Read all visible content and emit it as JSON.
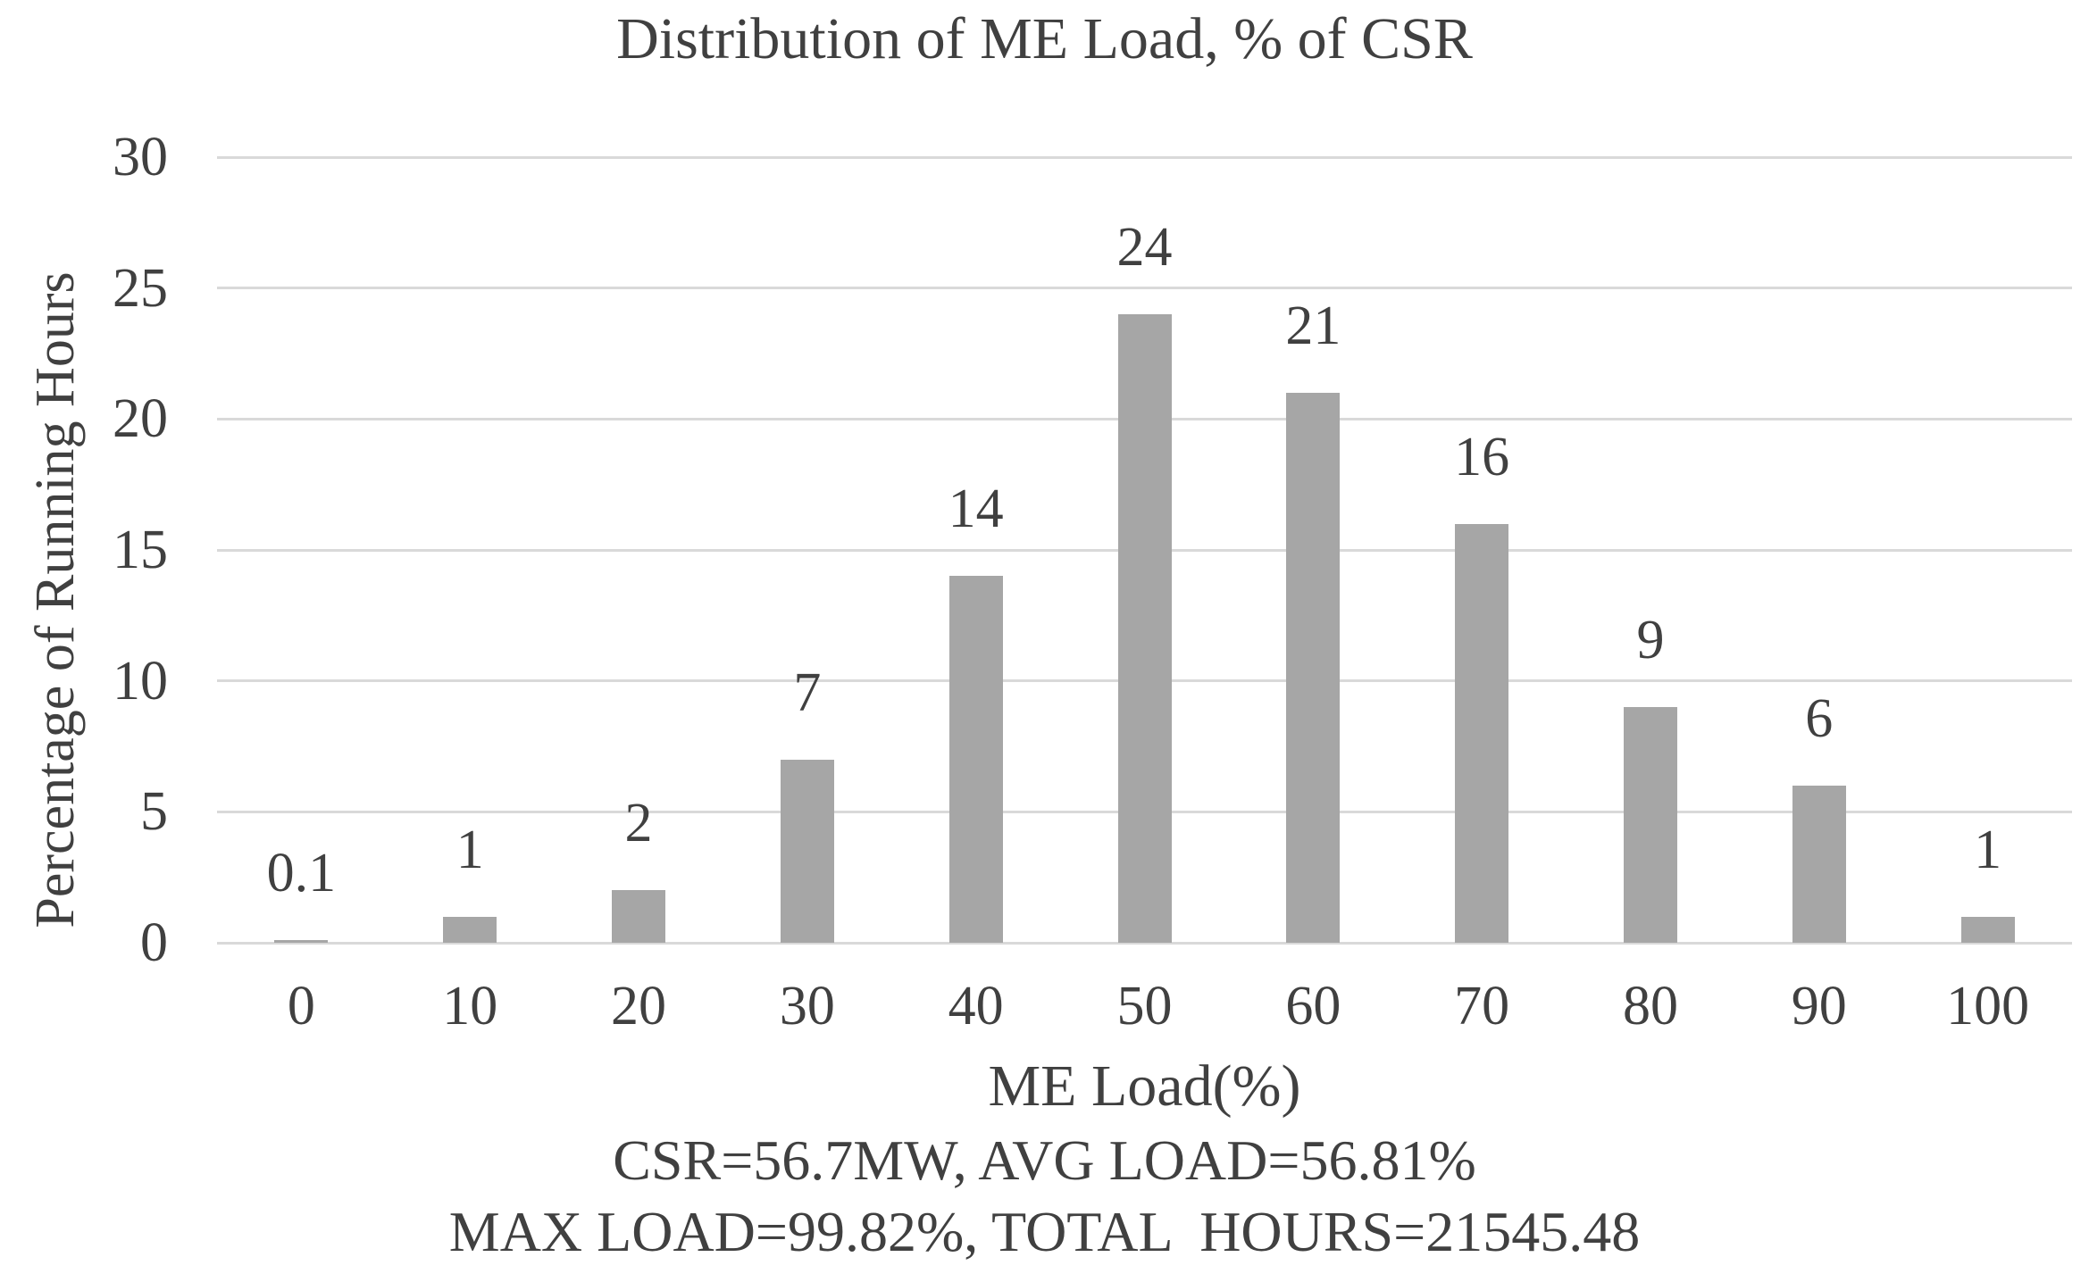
{
  "chart_data": {
    "type": "bar",
    "title": "Distribution of ME Load, % of CSR",
    "xlabel": "ME Load(%)",
    "ylabel": "Percentage of Running Hours",
    "categories": [
      "0",
      "10",
      "20",
      "30",
      "40",
      "50",
      "60",
      "70",
      "80",
      "90",
      "100"
    ],
    "values": [
      0.1,
      1,
      2,
      7,
      14,
      24,
      21,
      16,
      9,
      6,
      1
    ],
    "bar_labels": [
      "0.1",
      "1",
      "2",
      "7",
      "14",
      "24",
      "21",
      "16",
      "9",
      "6",
      "1"
    ],
    "ylim": [
      0,
      30
    ],
    "yticks": [
      0,
      5,
      10,
      15,
      20,
      25,
      30
    ],
    "grid": "horizontal",
    "legend": "none",
    "annotations": [
      "CSR=56.7MW, AVG LOAD=56.81%",
      "MAX LOAD=99.82%, TOTAL  HOURS=21545.48"
    ],
    "colors": {
      "bar": "#a6a6a6",
      "gridline": "#d9d9d9",
      "text": "#404040",
      "background": "#ffffff"
    }
  }
}
